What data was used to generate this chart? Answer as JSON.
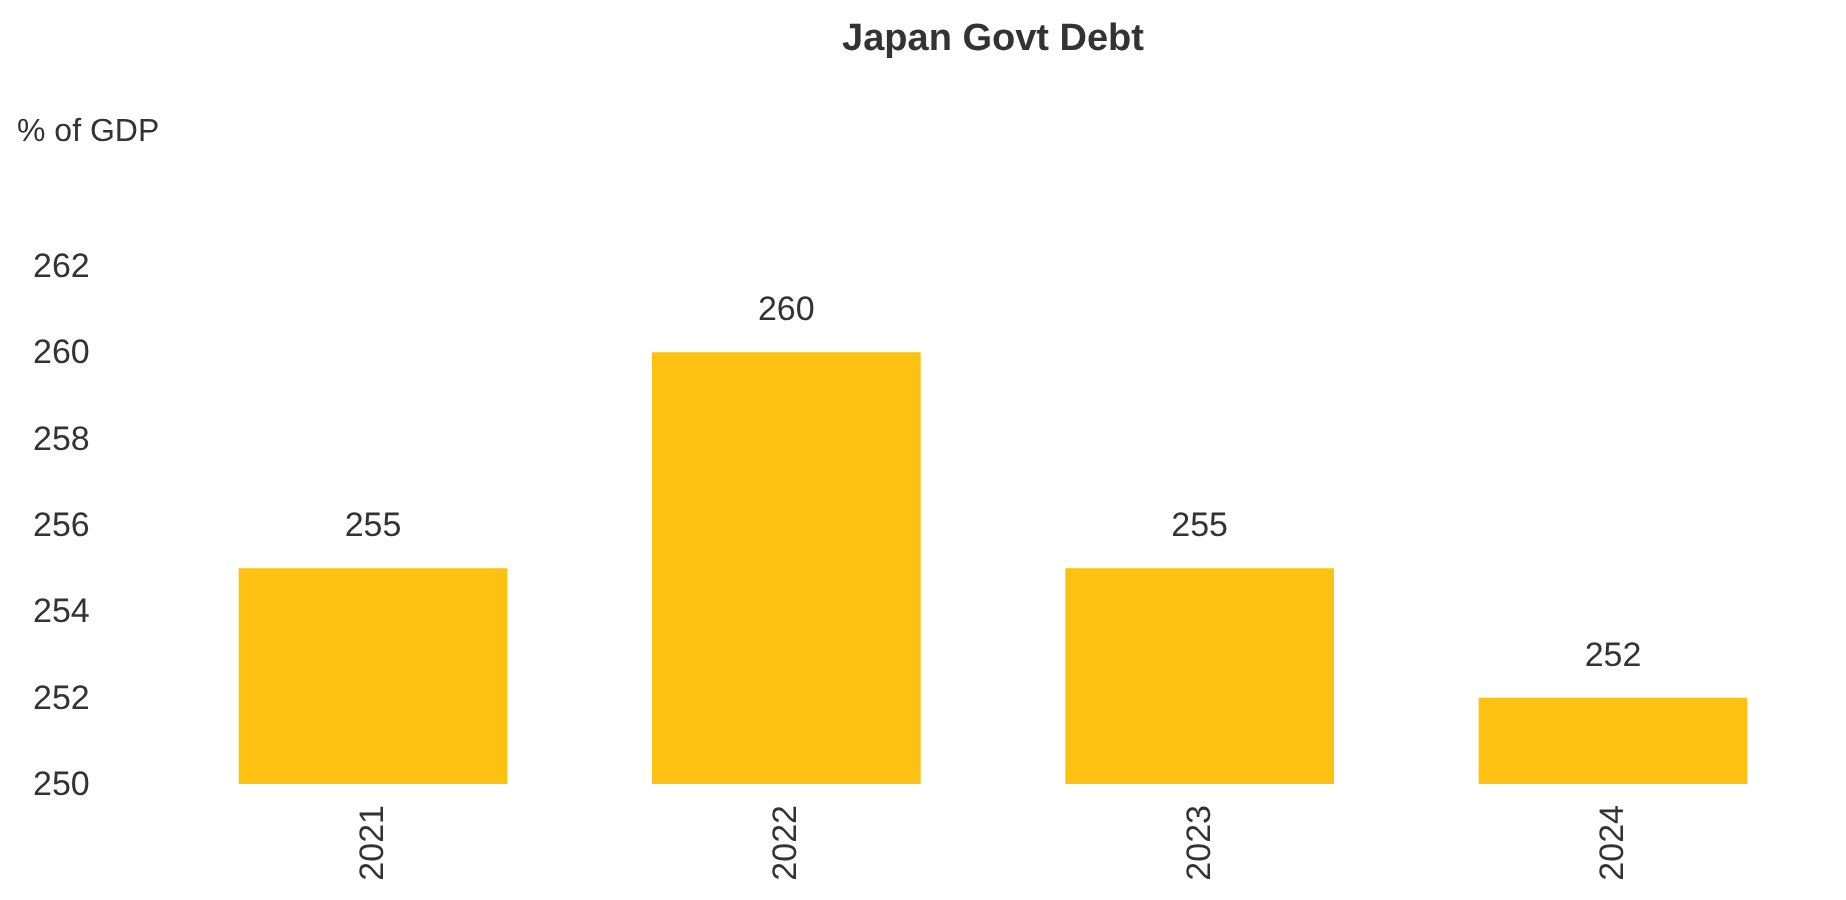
{
  "chart_data": {
    "type": "bar",
    "title": "Japan Govt Debt",
    "ylabel": "% of GDP",
    "categories": [
      "2021",
      "2022",
      "2023",
      "2024"
    ],
    "values": [
      255,
      260,
      255,
      252
    ],
    "color": "#fdc112",
    "ylim": [
      250,
      262
    ],
    "yticks": [
      250,
      252,
      254,
      256,
      258,
      260,
      262
    ],
    "data_labels": true,
    "grid": false
  }
}
